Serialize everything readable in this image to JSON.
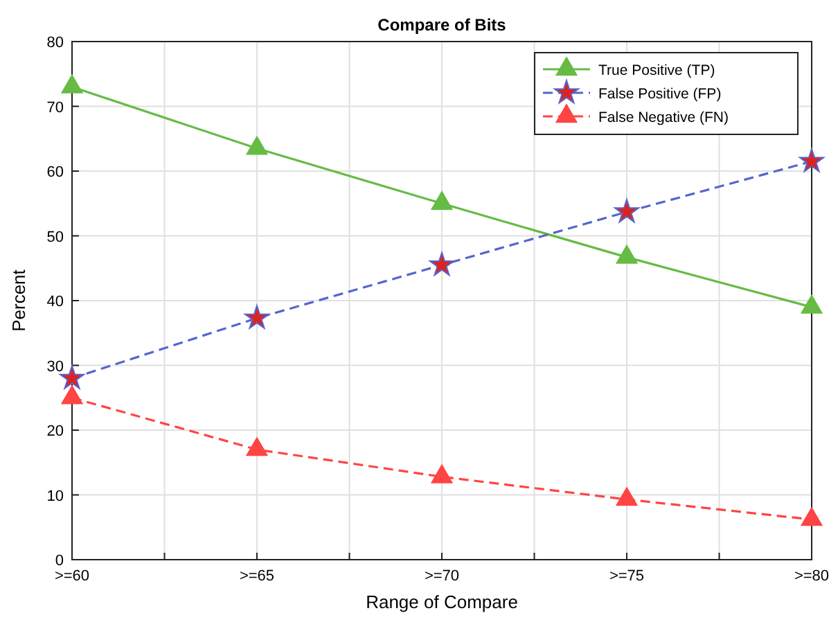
{
  "chart_data": {
    "type": "line",
    "title": "Compare of Bits",
    "xlabel": "Range of Compare",
    "ylabel": "Percent",
    "categories": [
      ">=60",
      ">=65",
      ">=70",
      ">=75",
      ">=80"
    ],
    "ylim": [
      0,
      80
    ],
    "yticks": [
      0,
      10,
      20,
      30,
      40,
      50,
      60,
      70,
      80
    ],
    "grid": true,
    "legend": "top right",
    "series": [
      {
        "name": "True Positive (TP)",
        "color": "#66bb44",
        "marker": "triangle",
        "line_style": "solid",
        "values": [
          73,
          63.5,
          55,
          46.7,
          39
        ]
      },
      {
        "name": "False Positive (FP)",
        "color": "#5566cc",
        "marker": "star",
        "line_style": "dashed",
        "values": [
          28,
          37.3,
          45.5,
          53.7,
          61.5
        ]
      },
      {
        "name": "False Negative (FN)",
        "color": "#ff4444",
        "marker": "triangle",
        "line_style": "dashed",
        "values": [
          25,
          17,
          12.8,
          9.3,
          6.2
        ]
      }
    ]
  }
}
